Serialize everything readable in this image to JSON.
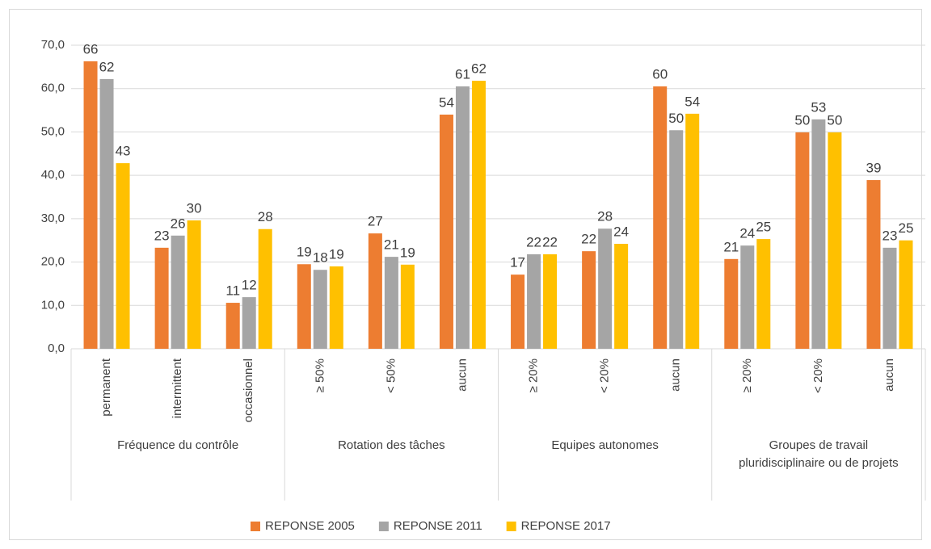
{
  "chart_data": {
    "type": "bar",
    "groups": [
      {
        "label": "Fréquence du contrôle",
        "categories": [
          "permanent",
          "intermittent",
          "occasionnel"
        ]
      },
      {
        "label": "Rotation des tâches",
        "categories": [
          "≥ 50%",
          "< 50%",
          "aucun"
        ]
      },
      {
        "label": "Equipes autonomes",
        "categories": [
          "≥ 20%",
          "< 20%",
          "aucun"
        ]
      },
      {
        "label": "Groupes de travail\npluridisciplinaire ou de projets",
        "categories": [
          "≥ 20%",
          "< 20%",
          "aucun"
        ]
      }
    ],
    "series": [
      {
        "name": "REPONSE 2005",
        "color": "#ed7d31",
        "values": [
          66.3,
          23.3,
          10.6,
          19.5,
          26.6,
          54.0,
          17.1,
          22.5,
          60.5,
          20.7,
          49.9,
          38.9
        ],
        "value_labels": [
          "66",
          "23",
          "11",
          "19",
          "27",
          "54",
          "17",
          "22",
          "60",
          "21",
          "50",
          "39"
        ]
      },
      {
        "name": "REPONSE 2011",
        "color": "#a5a5a5",
        "values": [
          62.2,
          26.1,
          11.9,
          18.2,
          21.2,
          60.5,
          21.8,
          27.7,
          50.4,
          23.8,
          52.9,
          23.3
        ],
        "value_labels": [
          "62",
          "26",
          "12",
          "18",
          "21",
          "61",
          "22",
          "28",
          "50",
          "24",
          "53",
          "23"
        ]
      },
      {
        "name": "REPONSE 2017",
        "color": "#ffc000",
        "values": [
          42.8,
          29.6,
          27.6,
          19.0,
          19.4,
          61.8,
          21.8,
          24.2,
          54.2,
          25.3,
          49.9,
          25.0
        ],
        "value_labels": [
          "43",
          "30",
          "28",
          "19",
          "19",
          "62",
          "22",
          "24",
          "54",
          "25",
          "50",
          "25"
        ]
      }
    ],
    "ylim": [
      0,
      70
    ],
    "yticks": [
      {
        "value": 0,
        "label": "0,0"
      },
      {
        "value": 10,
        "label": "10,0"
      },
      {
        "value": 20,
        "label": "20,0"
      },
      {
        "value": 30,
        "label": "30,0"
      },
      {
        "value": 40,
        "label": "40,0"
      },
      {
        "value": 50,
        "label": "50,0"
      },
      {
        "value": 60,
        "label": "60,0"
      },
      {
        "value": 70,
        "label": "70,0"
      }
    ],
    "grid": true,
    "legend": "bottom"
  }
}
